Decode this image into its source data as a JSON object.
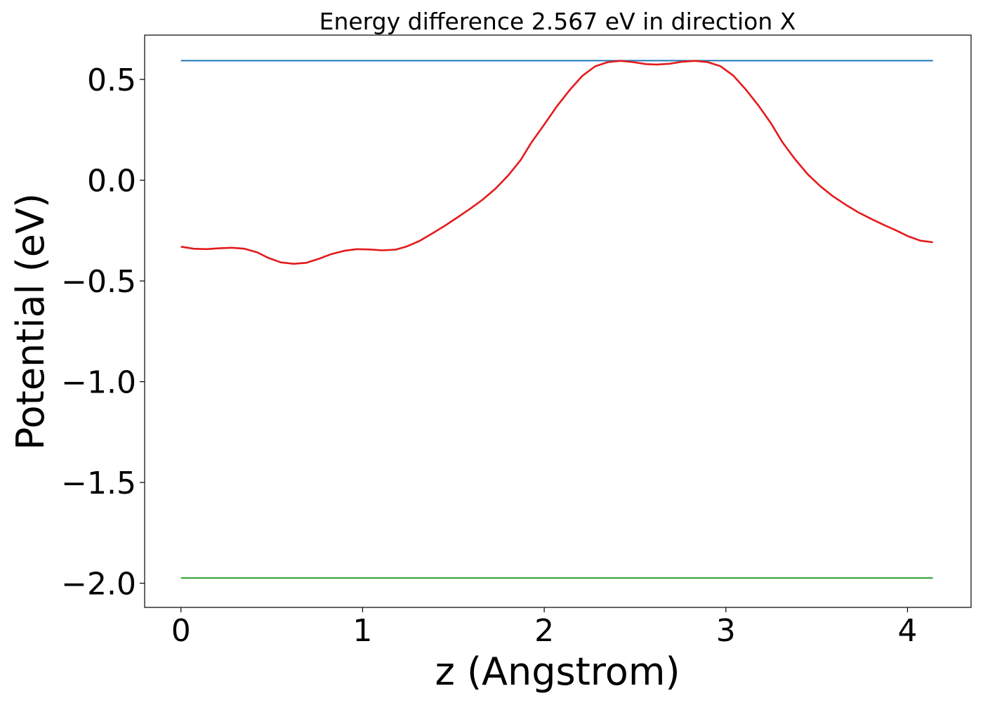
{
  "chart_data": {
    "type": "line",
    "title": "Energy difference 2.567 eV in direction X",
    "xlabel": "z (Angstrom)",
    "ylabel": "Potential (eV)",
    "xlim": [
      -0.2,
      4.35
    ],
    "ylim": [
      -2.12,
      0.72
    ],
    "xticks": [
      0,
      1,
      2,
      3,
      4
    ],
    "xtick_labels": [
      "0",
      "1",
      "2",
      "3",
      "4"
    ],
    "yticks": [
      0.5,
      0.0,
      -0.5,
      -1.0,
      -1.5,
      -2.0
    ],
    "ytick_labels": [
      "0.5",
      "0.0",
      "−0.5",
      "−1.0",
      "−1.5",
      "−2.0"
    ],
    "grid": false,
    "series": [
      {
        "color": "#1f77b4",
        "x": [
          0.0,
          4.14
        ],
        "y": [
          0.593,
          0.593
        ]
      },
      {
        "color": "#2ca02c",
        "x": [
          0.0,
          4.14
        ],
        "y": [
          -1.974,
          -1.974
        ]
      },
      {
        "color": "#e41a1c",
        "x": [
          0.0,
          0.07,
          0.14,
          0.21,
          0.28,
          0.35,
          0.42,
          0.48,
          0.55,
          0.62,
          0.69,
          0.76,
          0.83,
          0.9,
          0.97,
          1.04,
          1.11,
          1.18,
          1.24,
          1.31,
          1.38,
          1.45,
          1.52,
          1.59,
          1.66,
          1.73,
          1.8,
          1.87,
          1.93,
          2.0,
          2.07,
          2.14,
          2.21,
          2.28,
          2.35,
          2.42,
          2.49,
          2.56,
          2.62,
          2.69,
          2.76,
          2.83,
          2.9,
          2.97,
          3.04,
          3.11,
          3.18,
          3.25,
          3.31,
          3.38,
          3.45,
          3.52,
          3.59,
          3.66,
          3.73,
          3.8,
          3.87,
          3.94,
          4.0,
          4.07,
          4.14
        ],
        "y": [
          -0.33,
          -0.34,
          -0.342,
          -0.338,
          -0.335,
          -0.34,
          -0.358,
          -0.385,
          -0.408,
          -0.415,
          -0.41,
          -0.39,
          -0.366,
          -0.35,
          -0.342,
          -0.344,
          -0.348,
          -0.345,
          -0.33,
          -0.303,
          -0.266,
          -0.228,
          -0.186,
          -0.143,
          -0.097,
          -0.043,
          0.022,
          0.1,
          0.188,
          0.276,
          0.367,
          0.447,
          0.518,
          0.565,
          0.586,
          0.592,
          0.586,
          0.576,
          0.574,
          0.578,
          0.588,
          0.592,
          0.586,
          0.566,
          0.52,
          0.45,
          0.37,
          0.28,
          0.19,
          0.105,
          0.03,
          -0.03,
          -0.08,
          -0.122,
          -0.16,
          -0.192,
          -0.222,
          -0.25,
          -0.277,
          -0.3,
          -0.308
        ]
      }
    ]
  }
}
